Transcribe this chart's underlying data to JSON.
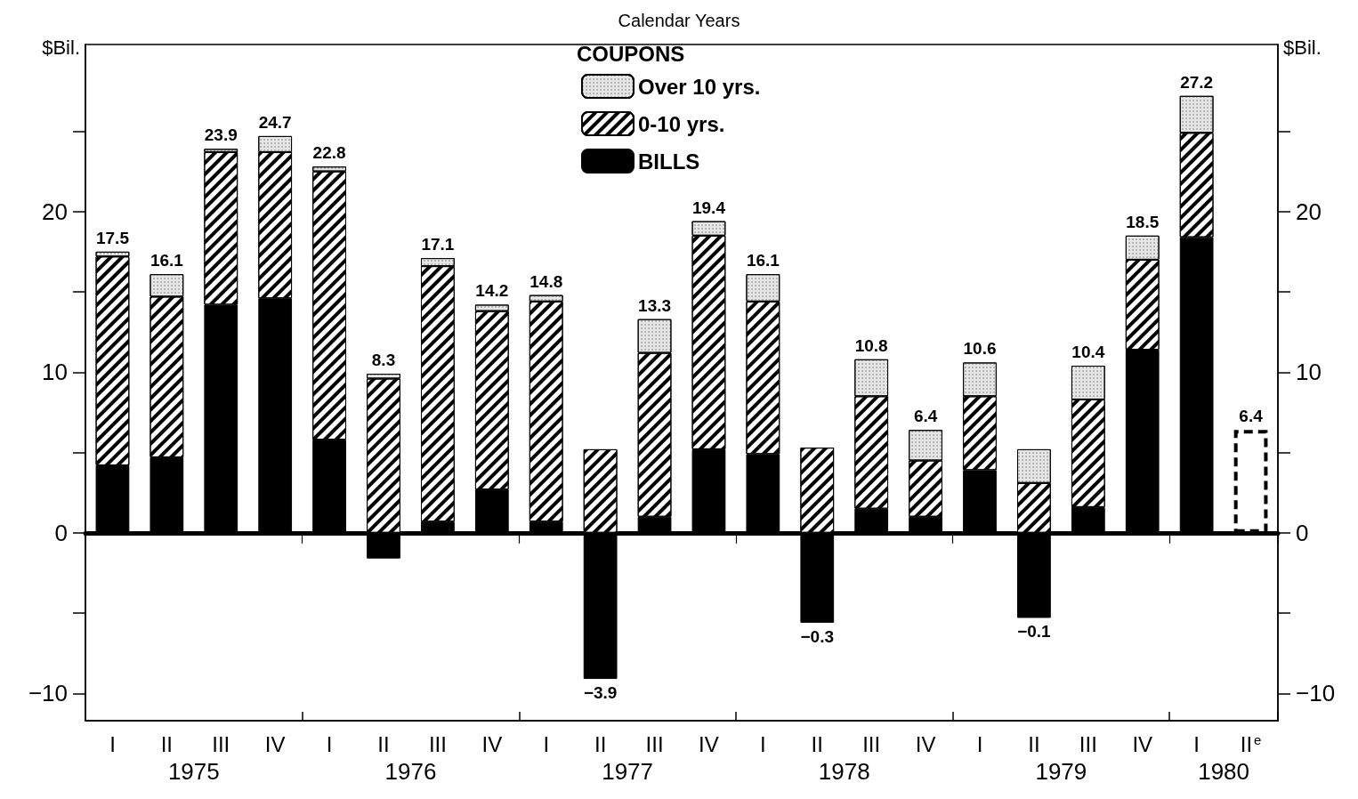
{
  "chart_data": {
    "type": "bar",
    "title": "Calendar Years",
    "ylabel": "$Bil.",
    "y2label": "$Bil.",
    "legend_title": "COUPONS",
    "stacked": true,
    "categories": [
      "I",
      "II",
      "III",
      "IV",
      "I",
      "II",
      "III",
      "IV",
      "I",
      "II",
      "III",
      "IV",
      "I",
      "II",
      "III",
      "IV",
      "I",
      "II",
      "III",
      "IV",
      "I",
      "II$^{e}$"
    ],
    "series": [
      {
        "name": "BILLS",
        "color": "#000000",
        "values": [
          4.2,
          4.7,
          14.2,
          14.6,
          5.8,
          -1.6,
          0.7,
          2.7,
          0.7,
          -9.1,
          1.0,
          5.2,
          4.9,
          -5.6,
          1.5,
          1.0,
          3.9,
          -5.3,
          1.6,
          11.4,
          18.4,
          null
        ]
      },
      {
        "name": "0-10 yrs.",
        "color": "#ffffff",
        "values": [
          13.0,
          10.0,
          9.5,
          9.1,
          16.7,
          9.6,
          15.9,
          11.1,
          13.7,
          5.2,
          10.2,
          13.3,
          9.5,
          5.3,
          7.0,
          3.5,
          4.6,
          3.1,
          6.7,
          5.6,
          6.5,
          null
        ]
      },
      {
        "name": "Over 10 yrs.",
        "color": "#e6e6e6",
        "values": [
          0.3,
          1.4,
          0.2,
          1.0,
          0.3,
          0.3,
          0.5,
          0.4,
          0.4,
          null,
          2.1,
          0.9,
          1.7,
          null,
          2.3,
          1.9,
          2.1,
          2.1,
          2.1,
          1.5,
          2.3,
          null
        ]
      },
      {
        "color": "#ffffff",
        "line_style": "dashed",
        "values": [
          null,
          null,
          null,
          null,
          null,
          null,
          null,
          null,
          null,
          null,
          null,
          null,
          null,
          null,
          null,
          null,
          null,
          null,
          null,
          null,
          null,
          6.4
        ]
      }
    ],
    "totals": [
      "17.5",
      "16.1",
      "23.9",
      "24.7",
      "22.8",
      "8.3",
      "17.1",
      "14.2",
      "14.8",
      "−3.9",
      "13.3",
      "19.4",
      "16.1",
      "−0.3",
      "10.8",
      "6.4",
      "10.6",
      "−0.1",
      "10.4",
      "18.5",
      "27.2",
      "6.4"
    ],
    "ylim": [
      -11.7,
      30.4
    ],
    "yticks": [
      -10,
      {
        "value": -5,
        "label": null
      },
      0,
      {
        "value": 5,
        "label": null
      },
      10,
      {
        "value": 15,
        "label": null
      },
      20,
      {
        "value": 25,
        "label": null
      }
    ],
    "y2lim": [
      -11.7,
      30.4
    ],
    "y2ticks": [
      -10,
      {
        "value": -5,
        "label": null
      },
      0,
      {
        "value": 5,
        "label": null
      },
      10,
      {
        "value": 15,
        "label": null
      },
      20,
      {
        "value": 25,
        "label": null
      }
    ],
    "annotations": [
      "1975",
      "1976",
      "1977",
      "1978",
      "1979",
      "1980"
    ],
    "legend": "top"
  }
}
